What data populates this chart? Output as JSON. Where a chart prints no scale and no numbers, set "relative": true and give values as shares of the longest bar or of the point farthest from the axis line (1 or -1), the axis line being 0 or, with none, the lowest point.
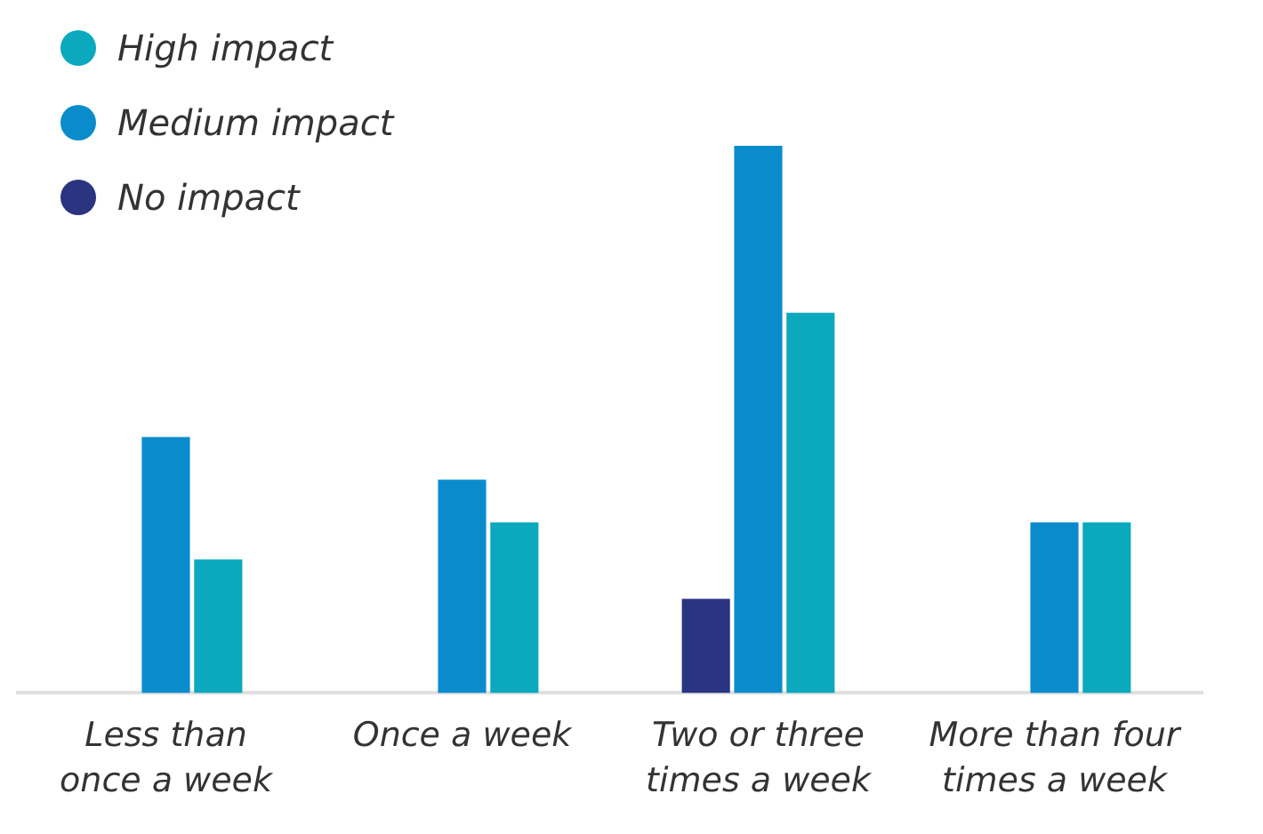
{
  "chart_data": {
    "type": "bar",
    "relative": true,
    "legend": "top left",
    "grid": false,
    "categories": [
      "Less than once a week",
      "Once a week",
      "Two or three times a week",
      "More than four times a week"
    ],
    "series": [
      {
        "name": "No impact",
        "color": "#2b3480",
        "values": [
          null,
          null,
          0.172,
          null
        ]
      },
      {
        "name": "Medium impact",
        "color": "#0a8ccc",
        "values": [
          0.468,
          0.39,
          1,
          0.312
        ]
      },
      {
        "name": "High impact",
        "color": "#0aa9bd",
        "values": [
          0.244,
          0.312,
          0.695,
          0.312
        ]
      }
    ]
  }
}
